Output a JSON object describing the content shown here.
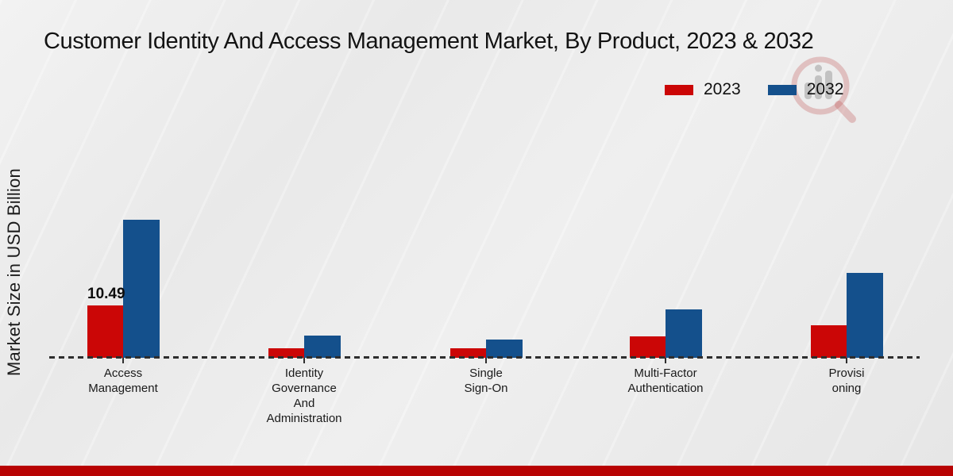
{
  "title": "Customer Identity And Access Management Market, By Product, 2023 & 2032",
  "y_axis_label": "Market Size in USD Billion",
  "legend": [
    {
      "label": "2023",
      "color": "#cb0606"
    },
    {
      "label": "2032",
      "color": "#14508c"
    }
  ],
  "watermark_icon": "bar-chart-magnifier-logo",
  "colors": {
    "bar_2023": "#cb0606",
    "bar_2032": "#14508c",
    "footer_strip": "#b80303",
    "axis": "#2e2e2e"
  },
  "chart_data": {
    "type": "bar",
    "title": "Customer Identity And Access Management Market, By Product, 2023 & 2032",
    "xlabel": "",
    "ylabel": "Market Size in USD Billion",
    "categories": [
      "Access\nManagement",
      "Identity\nGovernance\nAnd\nAdministration",
      "Single\nSign-On",
      "Multi-Factor\nAuthentication",
      "Provisi\noning"
    ],
    "series": [
      {
        "name": "2023",
        "color": "#cb0606",
        "values": [
          10.49,
          1.9,
          1.9,
          4.3,
          6.5
        ],
        "data_labels": [
          "10.49",
          "",
          "",
          "",
          ""
        ]
      },
      {
        "name": "2032",
        "color": "#14508c",
        "values": [
          27.8,
          4.5,
          3.6,
          9.8,
          17.1
        ],
        "data_labels": [
          "",
          "",
          "",
          "",
          ""
        ]
      }
    ],
    "ylim": [
      0,
      30
    ],
    "y_axis_ticks_visible": false,
    "grid": false,
    "baseline_style": "dashed",
    "legend_position": "top-right"
  }
}
